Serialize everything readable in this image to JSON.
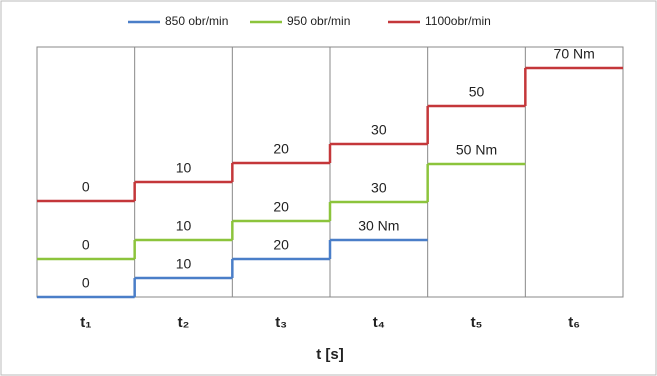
{
  "chart_data": {
    "type": "step",
    "categories": [
      "t₁",
      "t₂",
      "t₃",
      "t₄",
      "t₅",
      "t₆"
    ],
    "x_label": "t [s]",
    "series": [
      {
        "name": "850 obr/min",
        "color": "#4a7ec8",
        "values": [
          0,
          10,
          20,
          30,
          null,
          null
        ],
        "value_labels": [
          "0",
          "10",
          "20",
          "30 Nm",
          null,
          null
        ]
      },
      {
        "name": "950 obr/min",
        "color": "#8cc43c",
        "values": [
          0,
          10,
          20,
          30,
          50,
          null
        ],
        "value_labels": [
          "0",
          "10",
          "20",
          "30",
          "50 Nm",
          null
        ]
      },
      {
        "name": "1100obr/min",
        "color": "#c4373a",
        "values": [
          0,
          10,
          20,
          30,
          50,
          70
        ],
        "value_labels": [
          "0",
          "10",
          "20",
          "30",
          "50",
          "70 Nm"
        ]
      }
    ]
  }
}
